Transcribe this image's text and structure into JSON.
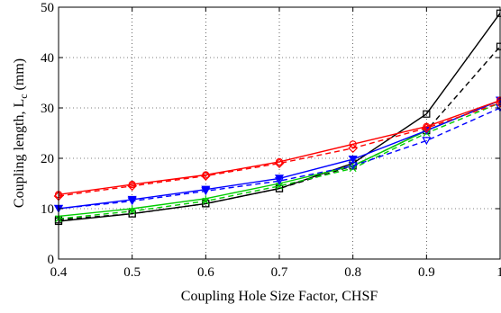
{
  "chart_data": {
    "type": "line",
    "xlabel": "Coupling Hole Size Factor, CHSF",
    "ylabel": "Coupling length, L",
    "ylabel_sub": "c",
    "ylabel_unit": " (mm)",
    "xlim": [
      0.4,
      1.0
    ],
    "ylim": [
      0,
      50
    ],
    "xticks": [
      "0.4",
      "0.5",
      "0.6",
      "0.7",
      "0.8",
      "0.9",
      "1"
    ],
    "yticks": [
      "0",
      "10",
      "20",
      "30",
      "40",
      "50"
    ],
    "grid": true,
    "legend": "none",
    "x": [
      0.4,
      0.5,
      0.6,
      0.7,
      0.8,
      0.9,
      1.0
    ],
    "series": [
      {
        "color": "#000000",
        "style": "solid",
        "marker": "square",
        "values": [
          7.5,
          9.0,
          11.0,
          14.0,
          19.0,
          28.8,
          48.8
        ]
      },
      {
        "color": "#000000",
        "style": "dashed",
        "marker": "square",
        "values": [
          7.8,
          9.0,
          11.0,
          14.0,
          18.5,
          25.5,
          42.2
        ]
      },
      {
        "color": "#00cc00",
        "style": "solid",
        "marker": "plus",
        "values": [
          8.5,
          10.0,
          12.0,
          15.0,
          18.5,
          25.5,
          31.5
        ]
      },
      {
        "color": "#00cc00",
        "style": "dashed",
        "marker": "x",
        "values": [
          8.0,
          9.5,
          11.5,
          14.5,
          18.0,
          25.0,
          31.0
        ]
      },
      {
        "color": "#0000ff",
        "style": "solid",
        "marker": "triangle-down",
        "values": [
          10.0,
          11.8,
          13.8,
          16.0,
          19.8,
          25.5,
          31.5
        ]
      },
      {
        "color": "#0000ff",
        "style": "dashed",
        "marker": "triangle-down-open",
        "values": [
          10.0,
          11.5,
          13.5,
          15.5,
          18.5,
          23.5,
          30.0
        ]
      },
      {
        "color": "#ff0000",
        "style": "solid",
        "marker": "circle",
        "values": [
          12.8,
          14.8,
          16.7,
          19.3,
          22.8,
          26.3,
          31.5
        ]
      },
      {
        "color": "#ff0000",
        "style": "dashed",
        "marker": "diamond",
        "values": [
          12.5,
          14.5,
          16.5,
          19.0,
          22.0,
          26.0,
          31.0
        ]
      }
    ]
  }
}
